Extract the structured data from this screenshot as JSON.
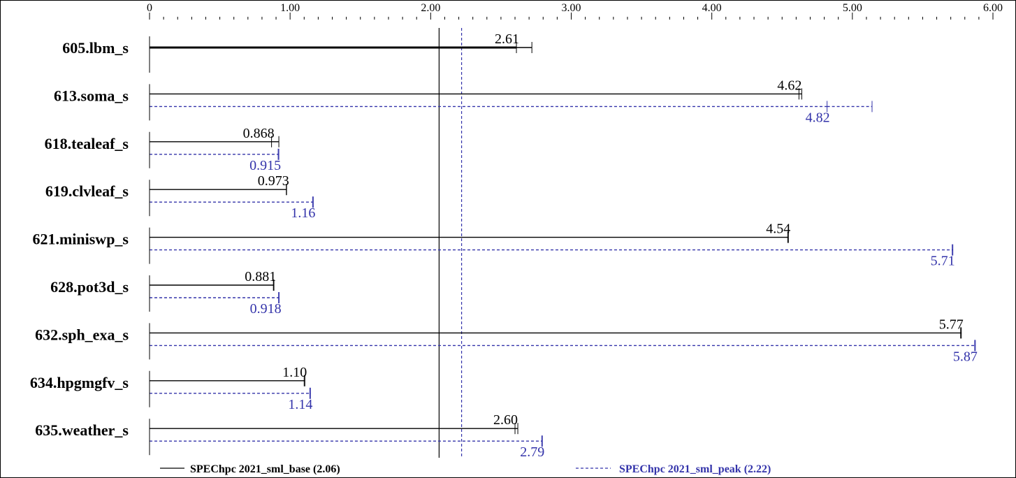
{
  "colors": {
    "base": "#000000",
    "peak": "#3333aa"
  },
  "chart_data": {
    "type": "bar",
    "orientation": "horizontal",
    "xlim": [
      0,
      6.0
    ],
    "ticks": [
      {
        "value": 0,
        "label": "0"
      },
      {
        "value": 1,
        "label": "1.00"
      },
      {
        "value": 2,
        "label": "2.00"
      },
      {
        "value": 3,
        "label": "3.00"
      },
      {
        "value": 4,
        "label": "4.00"
      },
      {
        "value": 5,
        "label": "5.00"
      },
      {
        "value": 6,
        "label": "6.00"
      }
    ],
    "categories": [
      "605.lbm_s",
      "613.soma_s",
      "618.tealeaf_s",
      "619.clvleaf_s",
      "621.miniswp_s",
      "628.pot3d_s",
      "632.sph_exa_s",
      "634.hpgmgfv_s",
      "635.weather_s"
    ],
    "series": [
      {
        "name": "SPEChpc 2021_sml_base (2.06)",
        "key": "base",
        "style": "solid",
        "mean": 2.06,
        "values": [
          2.61,
          4.62,
          0.868,
          0.973,
          4.54,
          0.881,
          5.77,
          1.1,
          2.6
        ],
        "labels": [
          "2.61",
          "4.62",
          "0.868",
          "0.973",
          "4.54",
          "0.881",
          "5.77",
          "1.10",
          "2.60"
        ],
        "errmax": [
          2.72,
          4.64,
          0.92,
          0.975,
          4.545,
          0.885,
          5.775,
          1.105,
          2.62
        ]
      },
      {
        "name": "SPEChpc 2021_sml_peak (2.22)",
        "key": "peak",
        "style": "dashed",
        "mean": 2.22,
        "values": [
          null,
          4.82,
          0.915,
          1.16,
          5.71,
          0.918,
          5.87,
          1.14,
          2.79
        ],
        "labels": [
          "",
          "4.82",
          "0.915",
          "1.16",
          "5.71",
          "0.918",
          "5.87",
          "1.14",
          "2.79"
        ],
        "errmax": [
          null,
          5.14,
          0.92,
          1.165,
          5.715,
          0.922,
          5.875,
          1.145,
          2.795
        ]
      }
    ]
  }
}
